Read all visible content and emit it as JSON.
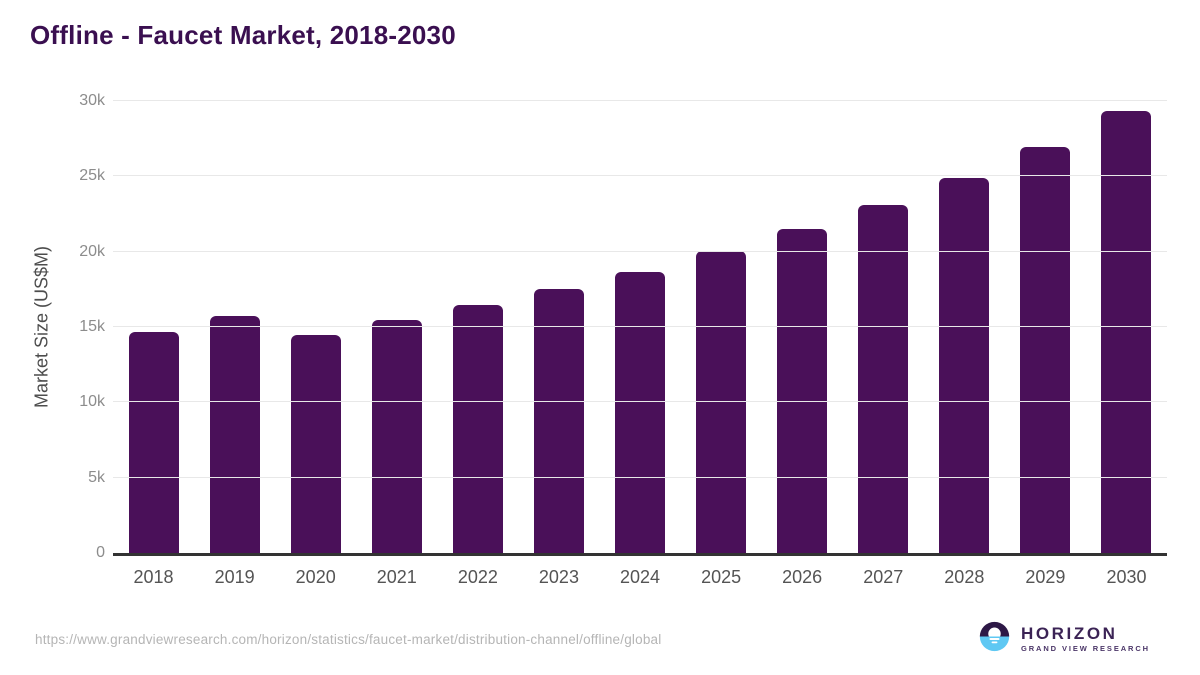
{
  "header": {
    "title": "Offline - Faucet Market, 2018-2030"
  },
  "chart_data": {
    "type": "bar",
    "title": "Offline - Faucet Market, 2018-2030",
    "xlabel": "",
    "ylabel": "Market Size (US$M)",
    "categories": [
      "2018",
      "2019",
      "2020",
      "2021",
      "2022",
      "2023",
      "2024",
      "2025",
      "2026",
      "2027",
      "2028",
      "2029",
      "2030"
    ],
    "values": [
      14700,
      15750,
      14500,
      15450,
      16450,
      17500,
      18650,
      20050,
      21500,
      23100,
      24900,
      26950,
      29350
    ],
    "ylim": [
      0,
      30000
    ],
    "yticks": [
      0,
      5000,
      10000,
      15000,
      20000,
      25000,
      30000
    ],
    "ytick_labels": [
      "0",
      "5k",
      "10k",
      "15k",
      "20k",
      "25k",
      "30k"
    ],
    "grid": true,
    "legend": false,
    "bar_color": "#4a1059"
  },
  "colors": {
    "bar": "#4a1059",
    "title": "#3a0f50",
    "gridline": "#e8e8e8",
    "axis_line": "#333333",
    "logo_dark": "#2d1846",
    "logo_blue": "#5fc8f3"
  },
  "footer": {
    "source_url": "https://www.grandviewresearch.com/horizon/statistics/faucet-market/distribution-channel/offline/global",
    "logo": {
      "name": "HORIZON",
      "subtitle": "GRAND VIEW RESEARCH",
      "icon": "horizon-sun-over-water-icon"
    }
  }
}
